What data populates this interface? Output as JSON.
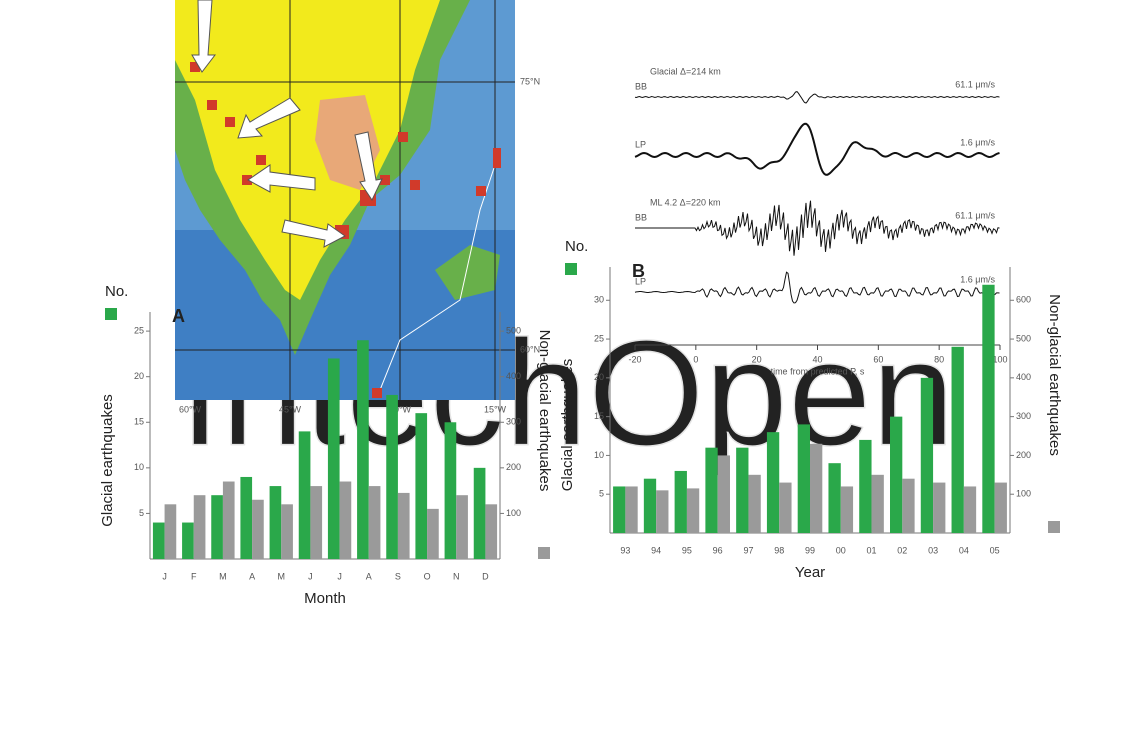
{
  "watermark": "IntechOpen",
  "map": {
    "lat_labels": [
      "75°N",
      "60°N"
    ],
    "lon_labels": [
      "60°W",
      "45°W",
      "30°W",
      "15°W"
    ]
  },
  "seismogram": {
    "traces": [
      {
        "title": "Glacial  Δ=214 km",
        "station": "BB",
        "scale": "61.1 μm/s"
      },
      {
        "station": "LP",
        "scale": "1.6 μm/s"
      },
      {
        "title": "ML 4.2  Δ=220 km",
        "station": "BB",
        "scale": "61.1 μm/s"
      },
      {
        "station": "LP",
        "scale": "1.6 μm/s"
      }
    ],
    "xlim": [
      -20,
      100
    ],
    "xticks": [
      -20,
      0,
      20,
      40,
      60,
      80,
      100
    ],
    "xlabel": "time from predicted P, s"
  },
  "chart_data": [
    {
      "type": "bar",
      "panel": "A",
      "ylabel_top": "No.",
      "xlabel": "Month",
      "categories": [
        "J",
        "F",
        "M",
        "A",
        "M",
        "J",
        "J",
        "A",
        "S",
        "O",
        "N",
        "D"
      ],
      "series": [
        {
          "name": "Glacial earthquakes",
          "color": "#2aa84a",
          "values": [
            4,
            4,
            7,
            9,
            8,
            14,
            22,
            24,
            18,
            16,
            15,
            10
          ]
        },
        {
          "name": "Non-glacial earthquakes",
          "color": "#9a9a9a",
          "axis": "y2",
          "values": [
            120,
            140,
            170,
            130,
            120,
            160,
            170,
            160,
            145,
            110,
            140,
            120
          ]
        }
      ],
      "ylim": [
        0,
        26
      ],
      "yticks": [
        5,
        10,
        15,
        20,
        25
      ],
      "y2lim": [
        0,
        520
      ],
      "y2ticks": [
        100,
        200,
        300,
        400,
        500
      ]
    },
    {
      "type": "bar",
      "panel": "B",
      "ylabel_top": "No.",
      "xlabel": "Year",
      "categories": [
        "93",
        "94",
        "95",
        "96",
        "97",
        "98",
        "99",
        "00",
        "01",
        "02",
        "03",
        "04",
        "05"
      ],
      "series": [
        {
          "name": "Glacial earthquakes",
          "color": "#2aa84a",
          "values": [
            6,
            7,
            8,
            11,
            11,
            13,
            14,
            9,
            12,
            15,
            20,
            24,
            32
          ]
        },
        {
          "name": "Non-glacial earthquakes",
          "color": "#9a9a9a",
          "axis": "y2",
          "values": [
            120,
            110,
            115,
            200,
            150,
            130,
            230,
            120,
            150,
            140,
            130,
            120,
            130
          ]
        }
      ],
      "ylim": [
        0,
        33
      ],
      "yticks": [
        5,
        10,
        15,
        20,
        25,
        30
      ],
      "y2lim": [
        0,
        660
      ],
      "y2ticks": [
        100,
        200,
        300,
        400,
        500,
        600
      ]
    }
  ]
}
